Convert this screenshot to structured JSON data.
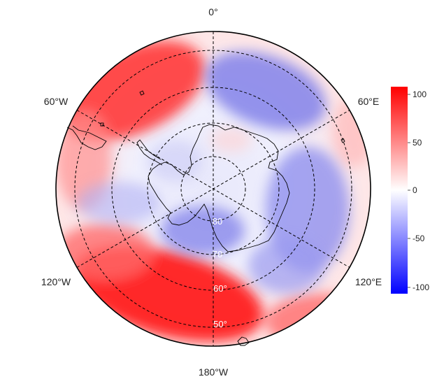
{
  "map": {
    "projection": "south-polar-stereographic",
    "longitude_labels": {
      "top": "0°",
      "upper_left": "60°W",
      "upper_right": "60°E",
      "lower_left": "120°W",
      "lower_right": "120°E",
      "bottom": "180°W"
    },
    "latitude_labels": [
      "80",
      "70",
      "60°",
      "50°"
    ],
    "colorbar": {
      "ticks": [
        "100",
        "50",
        "0",
        "-50",
        "-100"
      ],
      "min": -110,
      "max": 110,
      "colors": {
        "high": "#ff0000",
        "mid": "#ffffff",
        "low": "#0000ff"
      }
    },
    "grid": "dashed",
    "coastlines": true
  }
}
